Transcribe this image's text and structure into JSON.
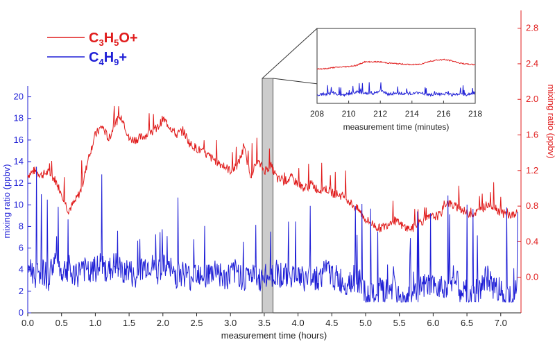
{
  "chart_data": {
    "type": "line",
    "xlabel": "measurement time (hours)",
    "ylabel_left": "mixing ratio (ppbv)",
    "ylabel_right": "mixing ratio (ppbv)",
    "xlim": [
      0.0,
      7.3
    ],
    "ylim_left": [
      0,
      21
    ],
    "ylim_right": [
      -0.4,
      3.0
    ],
    "x_ticks": [
      "0.0",
      "0.5",
      "1.0",
      "1.5",
      "2.0",
      "2.5",
      "3.0",
      "3.5",
      "4.0",
      "4.5",
      "5.0",
      "5.5",
      "6.0",
      "6.5",
      "7.0"
    ],
    "y_left_ticks": [
      "0",
      "2",
      "4",
      "6",
      "8",
      "10",
      "12",
      "14",
      "16",
      "18",
      "20"
    ],
    "y_right_ticks": [
      "0.0",
      "0.4",
      "0.8",
      "1.2",
      "1.6",
      "2.0",
      "2.4",
      "2.8"
    ],
    "highlight_band": {
      "x_start": 3.47,
      "x_end": 3.63
    },
    "legend": [
      {
        "base": "C",
        "sub1": "3",
        "mid": "H",
        "sub2": "5",
        "tail": "O+",
        "color": "#e01b1b"
      },
      {
        "base": "C",
        "sub1": "4",
        "mid": "H",
        "sub2": "9",
        "tail": "+",
        "color": "#1f1fd6"
      }
    ],
    "series": [
      {
        "name": "C3H5O+",
        "axis": "right",
        "color": "#e01b1b",
        "x": [
          0.0,
          0.1,
          0.2,
          0.3,
          0.4,
          0.5,
          0.6,
          0.7,
          0.8,
          0.9,
          1.0,
          1.1,
          1.2,
          1.3,
          1.4,
          1.5,
          1.6,
          1.7,
          1.8,
          1.9,
          2.0,
          2.1,
          2.2,
          2.3,
          2.4,
          2.5,
          2.6,
          2.7,
          2.8,
          2.9,
          3.0,
          3.1,
          3.2,
          3.3,
          3.4,
          3.5,
          3.6,
          3.7,
          3.8,
          3.9,
          4.0,
          4.1,
          4.2,
          4.3,
          4.4,
          4.5,
          4.6,
          4.7,
          4.8,
          4.9,
          5.0,
          5.1,
          5.2,
          5.3,
          5.4,
          5.5,
          5.6,
          5.7,
          5.8,
          5.9,
          6.0,
          6.1,
          6.2,
          6.3,
          6.4,
          6.5,
          6.6,
          6.7,
          6.8,
          6.9,
          7.0,
          7.1,
          7.2,
          7.25
        ],
        "values": [
          1.15,
          1.2,
          1.15,
          1.18,
          1.1,
          0.95,
          0.75,
          0.85,
          1.0,
          1.35,
          1.6,
          1.7,
          1.55,
          1.75,
          1.8,
          1.55,
          1.55,
          1.58,
          1.62,
          1.65,
          1.78,
          1.7,
          1.6,
          1.65,
          1.5,
          1.45,
          1.4,
          1.35,
          1.3,
          1.25,
          1.2,
          1.25,
          1.45,
          1.15,
          1.3,
          1.2,
          1.25,
          1.1,
          1.08,
          1.12,
          1.05,
          1.0,
          1.05,
          0.98,
          1.0,
          0.95,
          0.93,
          0.9,
          0.82,
          0.75,
          0.65,
          0.6,
          0.55,
          0.58,
          0.65,
          0.6,
          0.55,
          0.55,
          0.62,
          0.65,
          0.68,
          0.7,
          0.85,
          0.8,
          0.78,
          0.72,
          0.72,
          0.75,
          0.82,
          0.8,
          0.73,
          0.7,
          0.7,
          0.72
        ]
      },
      {
        "name": "C4H9+",
        "axis": "left",
        "color": "#1f1fd6",
        "x": [
          0.0,
          0.1,
          0.2,
          0.3,
          0.4,
          0.5,
          0.6,
          0.7,
          0.8,
          0.9,
          1.0,
          1.1,
          1.2,
          1.3,
          1.4,
          1.5,
          1.6,
          1.7,
          1.8,
          1.9,
          2.0,
          2.1,
          2.2,
          2.3,
          2.4,
          2.5,
          2.6,
          2.7,
          2.8,
          2.9,
          3.0,
          3.1,
          3.2,
          3.3,
          3.4,
          3.5,
          3.6,
          3.7,
          3.8,
          3.9,
          4.0,
          4.1,
          4.2,
          4.3,
          4.4,
          4.5,
          4.6,
          4.7,
          4.8,
          4.9,
          5.0,
          5.1,
          5.2,
          5.3,
          5.4,
          5.5,
          5.6,
          5.7,
          5.8,
          5.9,
          6.0,
          6.1,
          6.2,
          6.3,
          6.4,
          6.5,
          6.6,
          6.7,
          6.8,
          6.9,
          7.0,
          7.1,
          7.2,
          7.25
        ],
        "values": [
          4.5,
          3.5,
          4.0,
          3.2,
          5.0,
          3.8,
          4.2,
          3.0,
          4.5,
          3.5,
          4.0,
          4.2,
          3.8,
          4.5,
          3.6,
          4.0,
          2.8,
          4.2,
          4.5,
          3.8,
          4.2,
          4.0,
          3.5,
          3.8,
          3.2,
          4.0,
          3.6,
          3.5,
          4.2,
          3.0,
          3.5,
          3.8,
          3.2,
          3.6,
          3.0,
          3.2,
          3.5,
          3.8,
          3.3,
          3.6,
          3.4,
          3.0,
          3.5,
          3.2,
          3.8,
          3.5,
          3.0,
          2.8,
          3.2,
          3.0,
          1.5,
          1.4,
          2.0,
          1.8,
          2.5,
          1.2,
          1.3,
          1.5,
          2.0,
          2.5,
          2.2,
          2.8,
          2.5,
          3.5,
          2.0,
          1.8,
          1.5,
          2.5,
          3.2,
          2.5,
          2.0,
          1.6,
          1.8,
          2.0
        ]
      }
    ],
    "inset": {
      "xlabel": "measurement time (minutes)",
      "x_ticks": [
        "208",
        "210",
        "212",
        "214",
        "216",
        "218"
      ],
      "xlim": [
        208,
        218
      ],
      "ylim_right": [
        1.7,
        3.0
      ],
      "series": [
        {
          "name": "C3H5O+",
          "color": "#e01b1b",
          "x": [
            208,
            208.5,
            209,
            209.5,
            210,
            210.5,
            211,
            211.5,
            212,
            212.5,
            213,
            213.5,
            214,
            214.5,
            215,
            215.5,
            216,
            216.5,
            217,
            217.5,
            218
          ],
          "values": [
            2.3,
            2.3,
            2.32,
            2.33,
            2.34,
            2.36,
            2.42,
            2.42,
            2.42,
            2.4,
            2.39,
            2.38,
            2.37,
            2.38,
            2.42,
            2.45,
            2.46,
            2.44,
            2.4,
            2.38,
            2.37
          ]
        },
        {
          "name": "C4H9+",
          "color": "#1f1fd6",
          "x": [
            208,
            208.5,
            209,
            209.5,
            210,
            210.5,
            211,
            211.5,
            212,
            212.5,
            213,
            213.5,
            214,
            214.5,
            215,
            215.5,
            216,
            216.5,
            217,
            217.5,
            218
          ],
          "values": [
            1.85,
            1.86,
            1.88,
            1.85,
            1.86,
            1.9,
            1.88,
            1.87,
            1.92,
            1.86,
            1.88,
            1.87,
            1.86,
            1.89,
            1.85,
            1.86,
            1.87,
            1.85,
            1.86,
            1.85,
            1.88
          ]
        }
      ]
    }
  }
}
